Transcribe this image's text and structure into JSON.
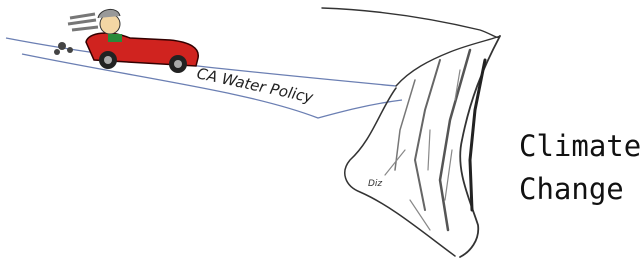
{
  "road_label": "CA Water Policy",
  "caption": {
    "line1": "Climate",
    "line2": "Change"
  },
  "signature": "Diz"
}
